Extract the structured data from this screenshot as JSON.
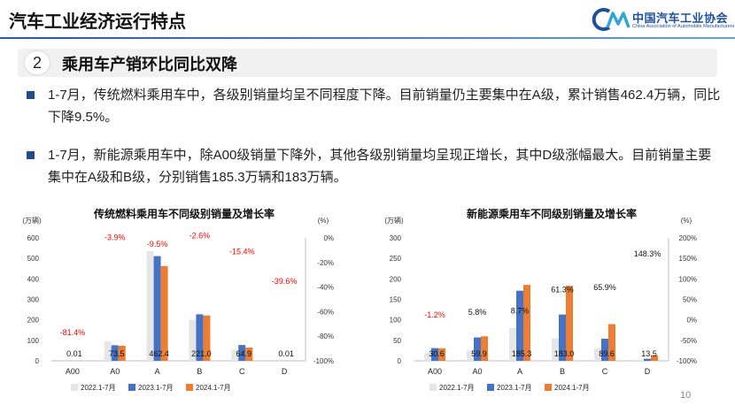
{
  "header": {
    "title": "汽车工业经济运行特点",
    "logo_cn": "中国汽车工业协会",
    "logo_en": "China Association of Automobile Manufacturers"
  },
  "section": {
    "number": "2",
    "title": "乘用车产销环比同比双降"
  },
  "bullets": [
    "1-7月，传统燃料乘用车中，各级别销量均呈不同程度下降。目前销量仍主要集中在A级，累计销售462.4万辆，同比下降9.5%。",
    "1-7月，新能源乘用车中，除A00级销量下降外，其他各级别销量均呈现正增长，其中D级涨幅最大。目前销量主要集中在A级和B级，分别销售185.3万辆和183万辆。"
  ],
  "page_number": "10",
  "colors": {
    "s2022": "#e6e6e6",
    "s2023": "#4472c4",
    "s2024": "#ed7d31",
    "growth": "#ff0000",
    "growth_pos": "#111111"
  },
  "chart_data": [
    {
      "type": "bar",
      "title": "传统燃料乘用车不同级别销量及增长率",
      "ylabel": "(万辆)",
      "y2label": "(%)",
      "ylim": [
        0,
        600
      ],
      "y2lim": [
        -100,
        0
      ],
      "yticks": [
        "0",
        "100",
        "200",
        "300",
        "400",
        "500",
        "600"
      ],
      "y2ticks": [
        "-100%",
        "-80%",
        "-60%",
        "-40%",
        "-20%",
        "0%"
      ],
      "categories": [
        "A00",
        "A0",
        "A",
        "B",
        "C",
        "D"
      ],
      "series": [
        {
          "name": "2022.1-7月",
          "values": [
            0.01,
            95,
            535,
            200,
            55,
            0.01
          ]
        },
        {
          "name": "2023.1-7月",
          "values": [
            0.05,
            76,
            511,
            227,
            77,
            0.02
          ]
        },
        {
          "name": "2024.1-7月",
          "values": [
            0.01,
            73.5,
            462.4,
            221.0,
            64.9,
            0.01
          ]
        }
      ],
      "value_labels": [
        "0.01",
        "73.5",
        "462.4",
        "221.0",
        "64.9",
        "0.01"
      ],
      "growth_values": [
        -81.4,
        -3.9,
        -9.5,
        -2.6,
        -15.4,
        -39.6
      ],
      "growth_labels": [
        "-81.4%",
        "-3.9%",
        "-9.5%",
        "-2.6%",
        "-15.4%",
        "-39.6%"
      ]
    },
    {
      "type": "bar",
      "title": "新能源乘用车不同级别销量及增长率",
      "ylabel": "(万辆)",
      "y2label": "(%)",
      "ylim": [
        0,
        300
      ],
      "y2lim": [
        -100,
        200
      ],
      "yticks": [
        "0",
        "50",
        "100",
        "150",
        "200",
        "250",
        "300"
      ],
      "y2ticks": [
        "-100%",
        "-50%",
        "0%",
        "50%",
        "100%",
        "150%",
        "200%"
      ],
      "categories": [
        "A00",
        "A0",
        "A",
        "B",
        "C",
        "D"
      ],
      "series": [
        {
          "name": "2022.1-7月",
          "values": [
            20,
            25,
            80,
            55,
            30,
            3
          ]
        },
        {
          "name": "2023.1-7月",
          "values": [
            31,
            57,
            171,
            113,
            54,
            5
          ]
        },
        {
          "name": "2024.1-7月",
          "values": [
            30.6,
            59.9,
            185.3,
            183.0,
            89.6,
            13.5
          ]
        }
      ],
      "value_labels": [
        "30.6",
        "59.9",
        "185.3",
        "183.0",
        "89.6",
        "13.5"
      ],
      "growth_values": [
        -1.2,
        5.8,
        8.7,
        61.3,
        65.9,
        148.3
      ],
      "growth_labels": [
        "-1.2%",
        "5.8%",
        "8.7%",
        "61.3%",
        "65.9%",
        "148.3%"
      ]
    }
  ]
}
